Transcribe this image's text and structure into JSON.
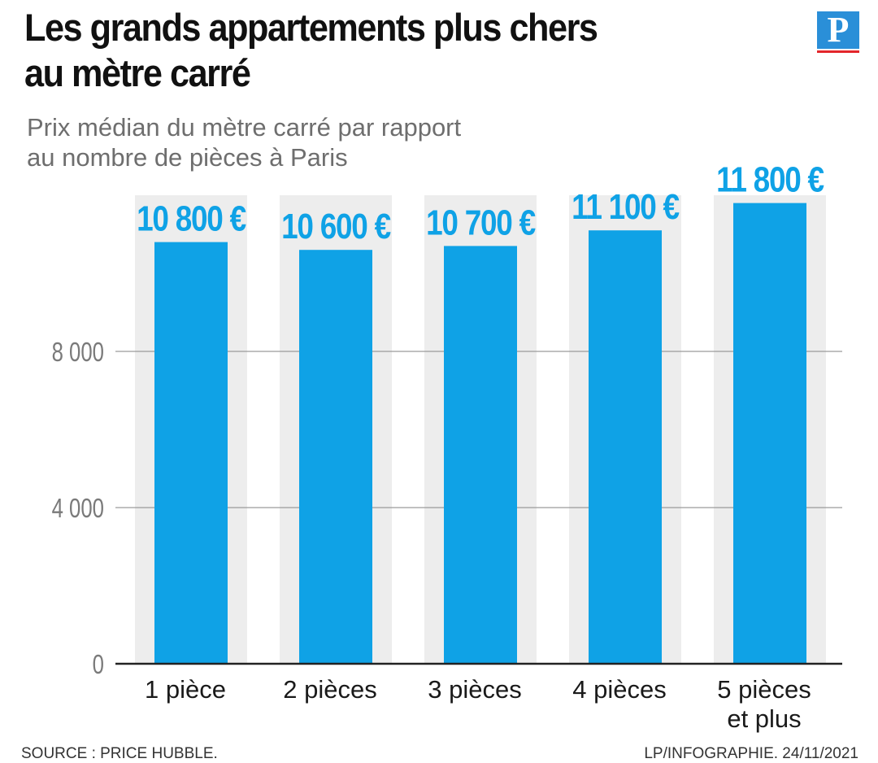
{
  "header": {
    "title_line1": "Les grands appartements plus chers",
    "title_line2": "au mètre carré",
    "subtitle_line1": "Prix médian du mètre carré par rapport",
    "subtitle_line2": "au nombre de pièces à Paris",
    "logo_letter": "P"
  },
  "footer": {
    "source": "SOURCE : PRICE HUBBLE.",
    "credit": "LP/INFOGRAPHIE.  24/11/2021"
  },
  "colors": {
    "bar": "#0fa2e6",
    "label": "#0fa2e6",
    "column_bg": "#ededed",
    "gridline": "#9a9a9a",
    "axis": "#222222",
    "logo_blue": "#2a8fd8",
    "logo_red": "#e3262b"
  },
  "chart_data": {
    "type": "bar",
    "categories": [
      [
        "1 pièce"
      ],
      [
        "2 pièces"
      ],
      [
        "3 pièces"
      ],
      [
        "4 pièces"
      ],
      [
        "5 pièces",
        "et plus"
      ]
    ],
    "values": [
      10800,
      10600,
      10700,
      11100,
      11800
    ],
    "value_labels": [
      "10 800 €",
      "10 600 €",
      "10 700 €",
      "11 100 €",
      "11 800 €"
    ],
    "yticks": [
      0,
      4000,
      8000
    ],
    "ytick_labels": [
      "0",
      "4 000",
      "8 000"
    ],
    "ylim": [
      0,
      12000
    ],
    "grid": true,
    "xlabel": "",
    "ylabel": ""
  }
}
